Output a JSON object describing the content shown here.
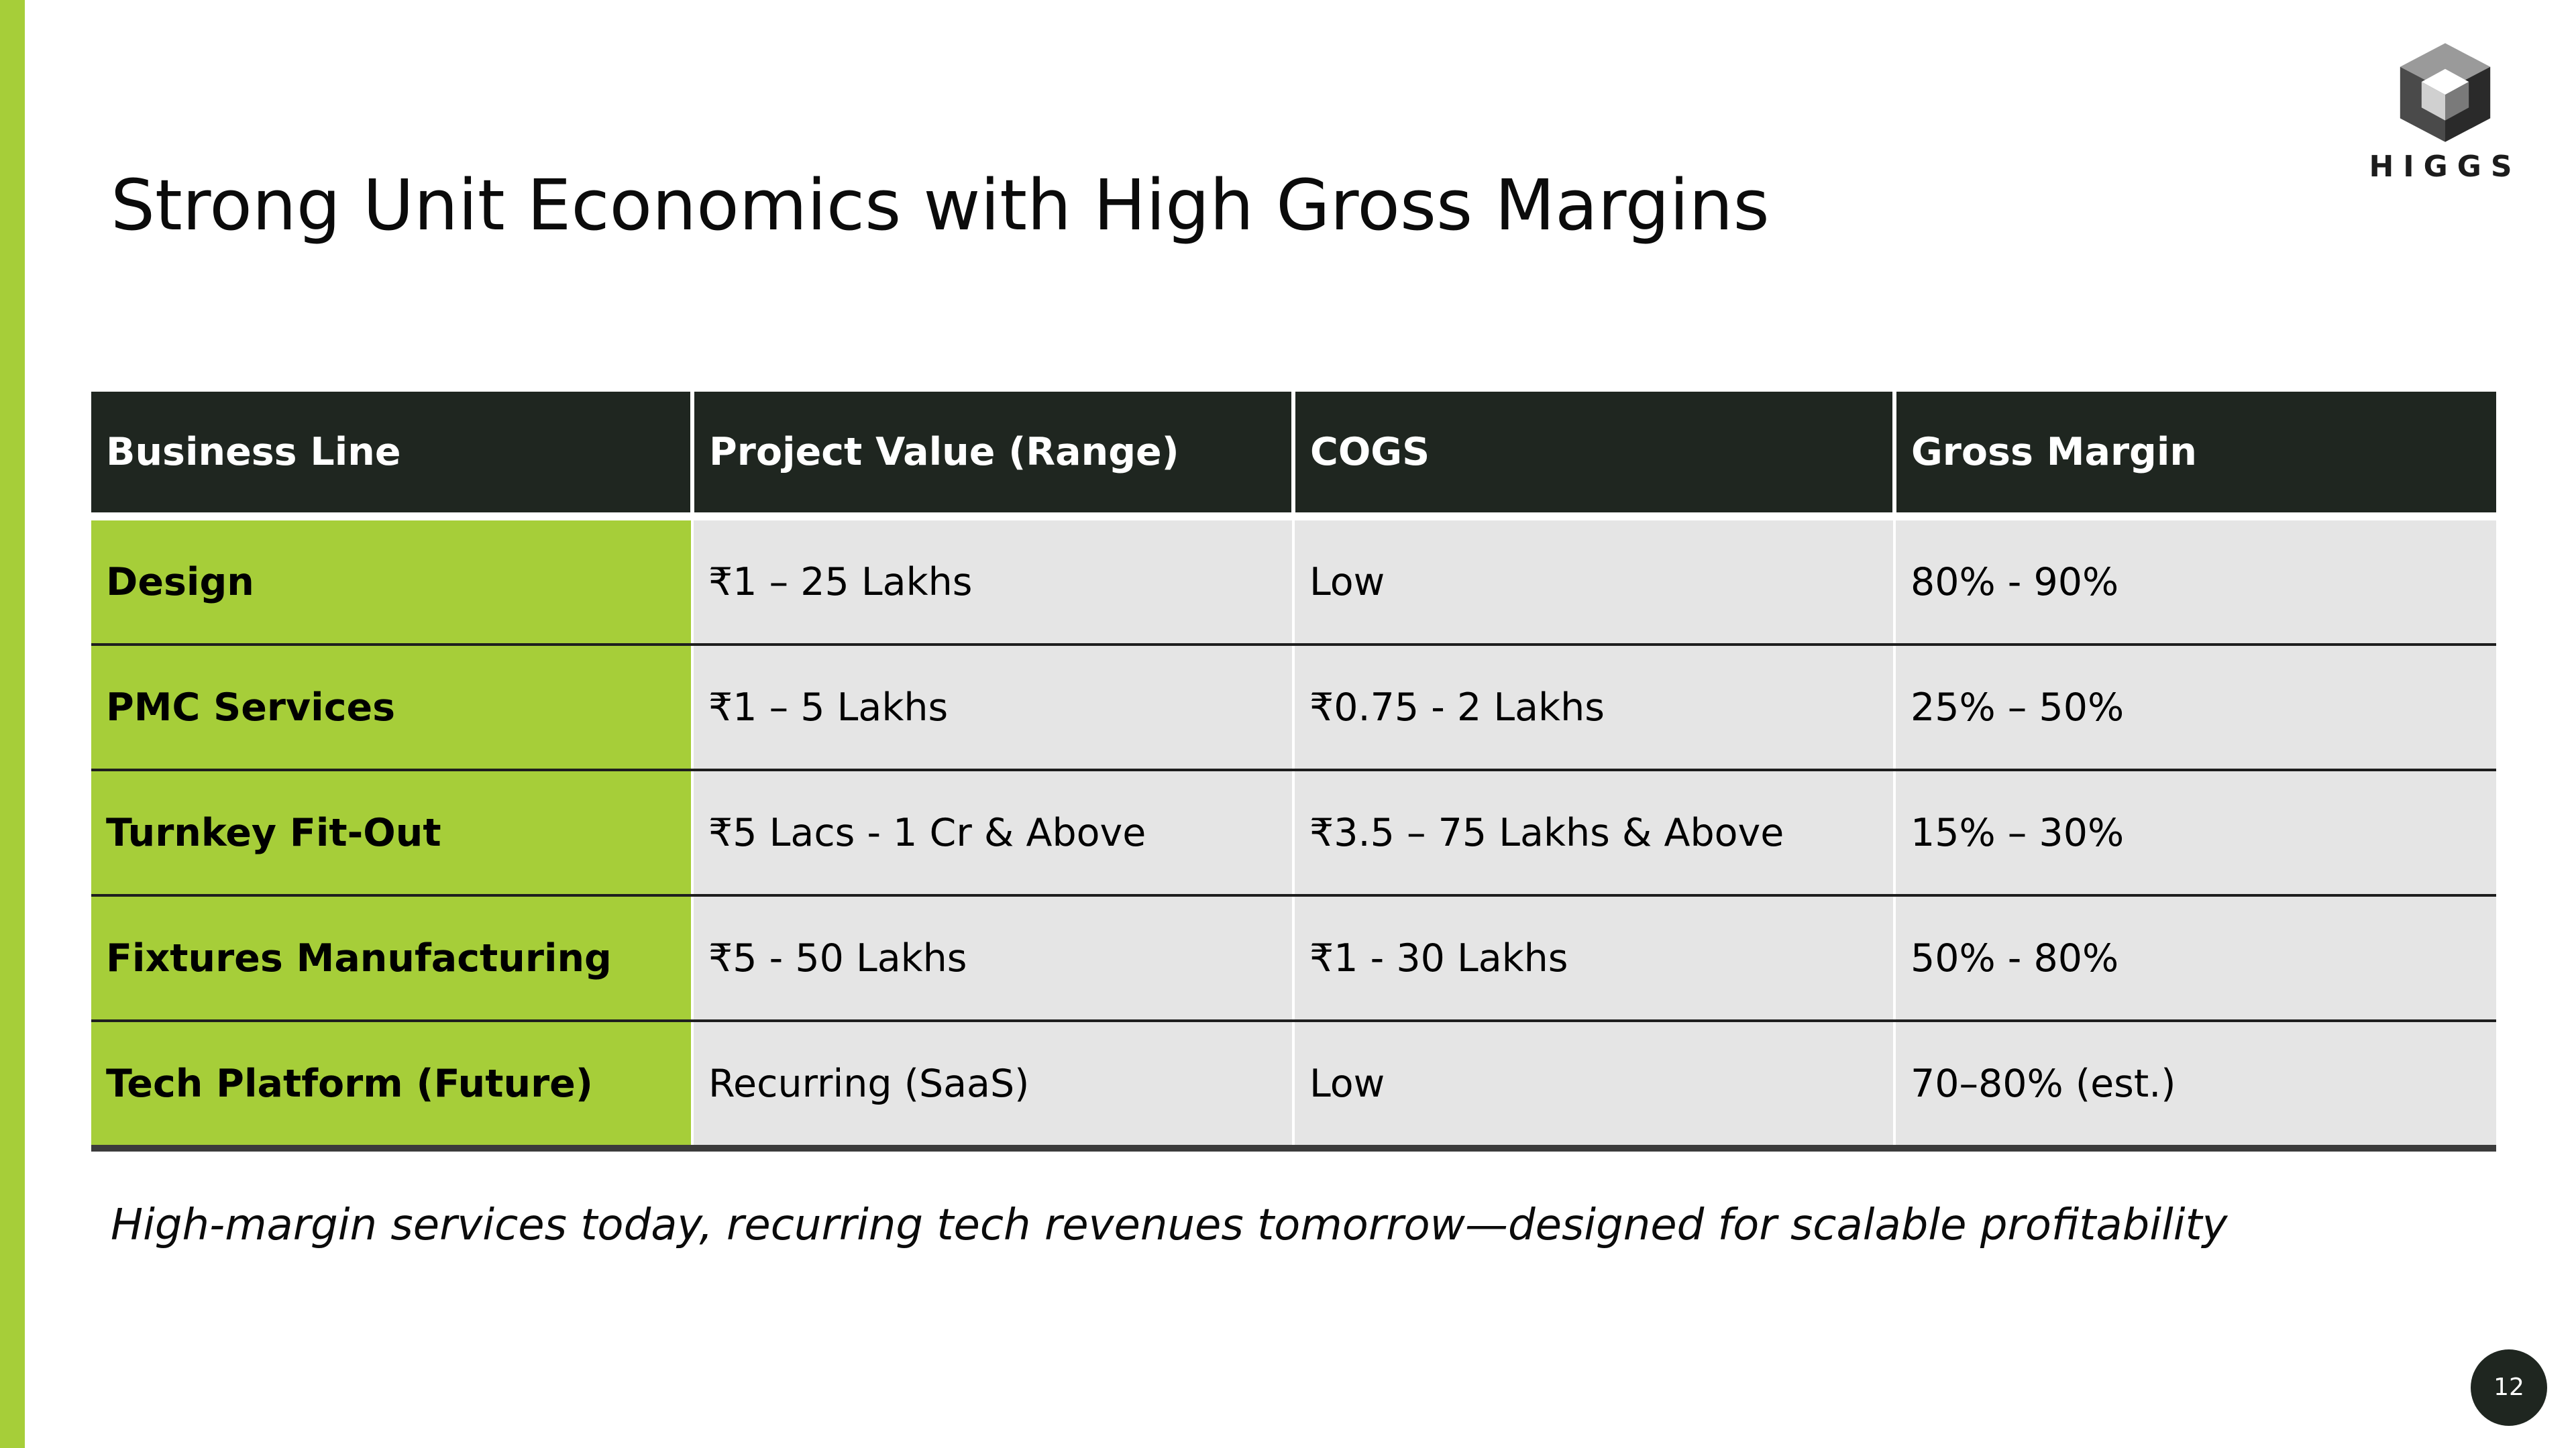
{
  "slide": {
    "title": "Strong Unit Economics with High Gross Margins",
    "logo_text": "HIGGS",
    "tagline": "High-margin services today, recurring tech revenues tomorrow—designed for scalable profitability",
    "page_number": "12",
    "accent_color": "#a6ce39",
    "header_color": "#1f2620"
  },
  "table": {
    "headers": [
      "Business Line",
      "Project Value (Range)",
      "COGS",
      "Gross Margin"
    ],
    "rows": [
      [
        "Design",
        "₹1 – 25 Lakhs",
        "Low",
        "80% - 90%"
      ],
      [
        "PMC Services",
        "₹1 – 5 Lakhs",
        "₹0.75 - 2 Lakhs",
        "25% – 50%"
      ],
      [
        "Turnkey Fit-Out",
        "₹5 Lacs - 1 Cr & Above",
        "₹3.5 – 75 Lakhs & Above",
        "15% – 30%"
      ],
      [
        "Fixtures Manufacturing",
        "₹5 - 50 Lakhs",
        "₹1 - 30 Lakhs",
        "50% - 80%"
      ],
      [
        "Tech Platform (Future)",
        "Recurring (SaaS)",
        "Low",
        "70–80% (est.)"
      ]
    ]
  }
}
